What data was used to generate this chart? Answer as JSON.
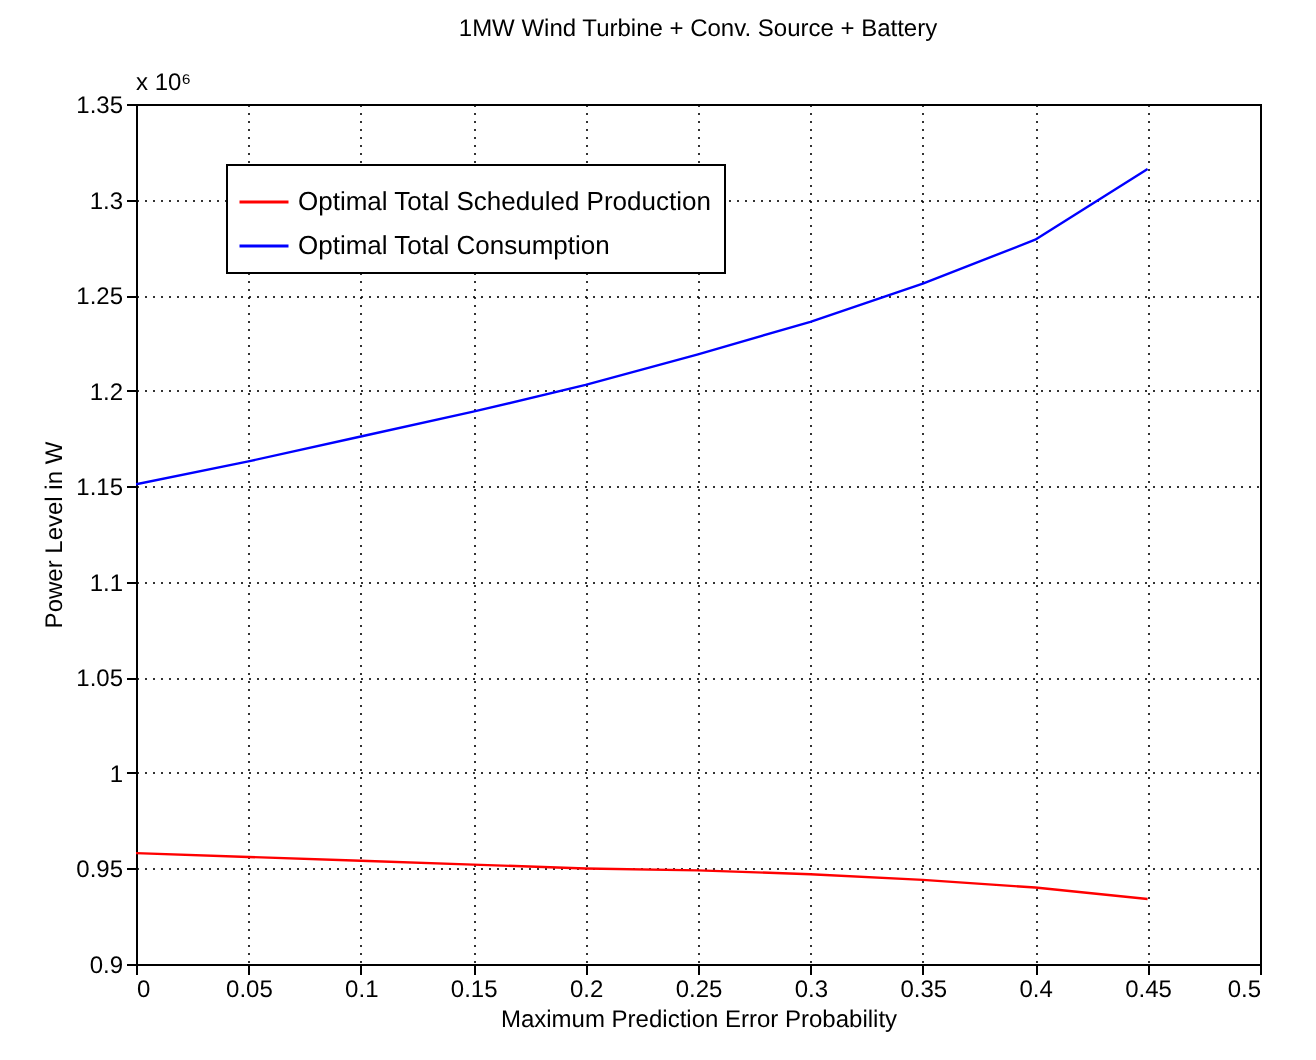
{
  "chart_data": {
    "type": "line",
    "title": "1MW Wind Turbine + Conv. Source + Battery",
    "xlabel": "Maximum Prediction Error Probability",
    "ylabel": "Power Level in W",
    "annotations": [
      "x 10⁶"
    ],
    "x": [
      0,
      0.05,
      0.1,
      0.15,
      0.2,
      0.25,
      0.3,
      0.35,
      0.4,
      0.45
    ],
    "series": [
      {
        "name": "Optimal Total Scheduled Production",
        "color": "#ff0000",
        "values": [
          0.958,
          0.956,
          0.954,
          0.952,
          0.95,
          0.949,
          0.947,
          0.944,
          0.94,
          0.934
        ]
      },
      {
        "name": "Optimal Total Consumption",
        "color": "#0000ff",
        "values": [
          1.151,
          1.163,
          1.176,
          1.189,
          1.203,
          1.219,
          1.236,
          1.256,
          1.279,
          1.316
        ]
      }
    ],
    "xlim": [
      0,
      0.5
    ],
    "xticks": [
      0,
      0.05,
      0.1,
      0.15,
      0.2,
      0.25,
      0.3,
      0.35,
      0.4,
      0.45,
      0.5
    ],
    "ylim": [
      0.9,
      1.35
    ],
    "yticks": [
      0.9,
      0.95,
      1,
      1.05,
      1.1,
      1.15,
      1.2,
      1.25,
      1.3,
      1.35
    ],
    "grid": true,
    "legend": "top left",
    "line_style": "solid"
  }
}
